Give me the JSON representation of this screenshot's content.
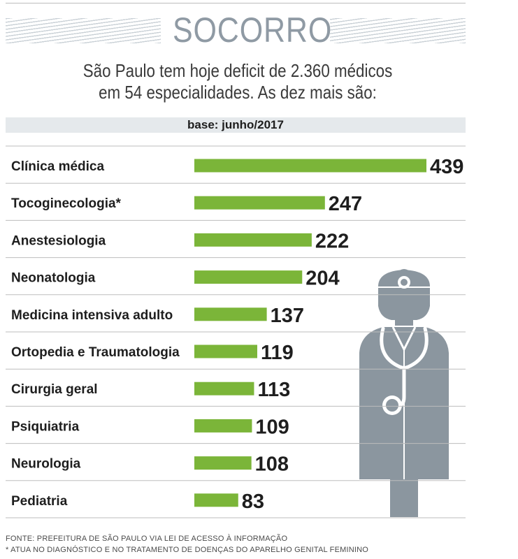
{
  "header": {
    "title": "SOCORRO",
    "subtitle_line1": "São Paulo tem hoje deficit de 2.360 médicos",
    "subtitle_line2": "em 54 especialidades. As dez mais são:",
    "base": "base: junho/2017"
  },
  "chart_data": {
    "type": "bar",
    "orientation": "horizontal",
    "categories": [
      "Clínica médica",
      "Tocoginecologia*",
      "Anestesiologia",
      "Neonatologia",
      "Medicina intensiva adulto",
      "Ortopedia e Traumatologia",
      "Cirurgia geral",
      "Psiquiatria",
      "Neurologia",
      "Pediatria"
    ],
    "values": [
      439,
      247,
      222,
      204,
      137,
      119,
      113,
      109,
      108,
      83
    ],
    "value_labels": [
      "439",
      "247",
      "222",
      "204",
      "137",
      "119",
      "113",
      "109",
      "108",
      "83"
    ],
    "bar_color": "#7bb539",
    "grid": false,
    "legend": "none"
  },
  "illustration": {
    "icon": "doctor-stethoscope-icon",
    "color": "#8b969f"
  },
  "footer": {
    "source": "FONTE: PREFEITURA DE SÃO PAULO VIA LEI DE ACESSO À INFORMAÇÃO",
    "note": "* ATUA NO DIAGNÓSTICO E NO TRATAMENTO DE DOENÇAS DO APARELHO GENITAL FEMININO"
  }
}
